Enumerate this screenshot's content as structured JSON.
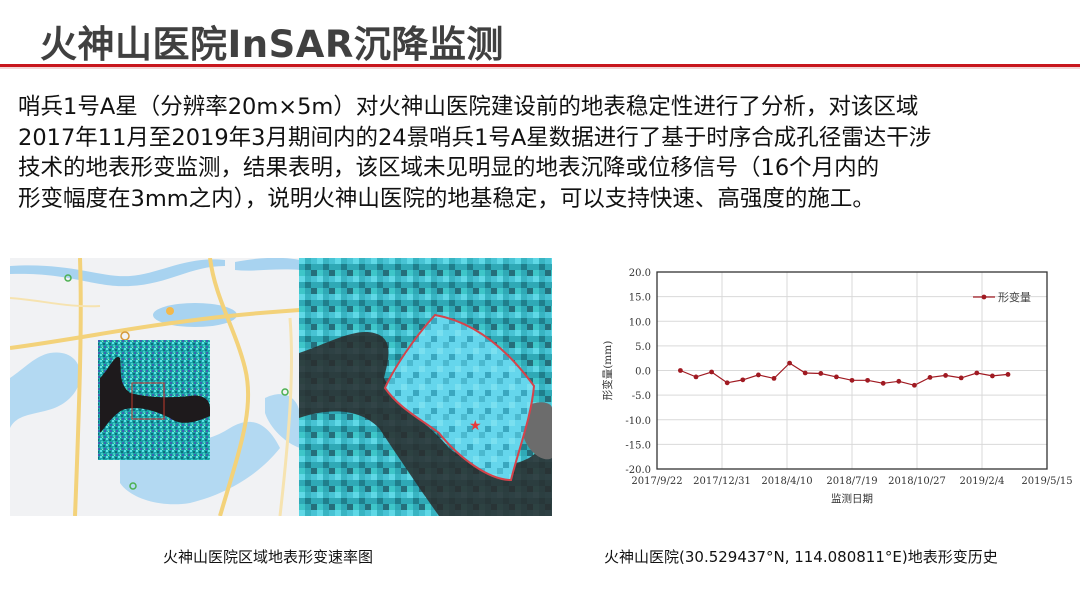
{
  "header": {
    "title": "火神山医院InSAR沉降监测"
  },
  "body": {
    "lines": [
      "哨兵1号A星（分辨率20m×5m）对火神山医院建设前的地表稳定性进行了分析，对该区域",
      "2017年11月至2019年3月期间内的24景哨兵1号A星数据进行了基于时序合成孔径雷达干涉",
      "技术的地表形变监测，结果表明，该区域未见明显的地表沉降或位移信号（16个月内的",
      "形变幅度在3mm之内），说明火神山医院的地基稳定，可以支持快速、高强度的施工。"
    ]
  },
  "figures": {
    "left_caption": "火神山医院区域地表形变速率图",
    "right_caption": "火神山医院(30.529437°N, 114.080811°E)地表形变历史"
  },
  "colors": {
    "accent_red": "#c8161d",
    "title_gray": "#404040",
    "series": "#a01a22",
    "grid": "#d9d9d9"
  },
  "chart_data": {
    "type": "line",
    "title": "",
    "xlabel": "监测日期",
    "ylabel": "形变量(mm)",
    "ylim": [
      -20.0,
      20.0
    ],
    "yticks": [
      "20.0",
      "15.0",
      "10.0",
      "5.0",
      "0.0",
      "-5.0",
      "-10.0",
      "-15.0",
      "-20.0"
    ],
    "xticks": [
      "2017/9/22",
      "2017/12/31",
      "2018/4/10",
      "2018/7/19",
      "2018/10/27",
      "2019/2/4",
      "2019/5/15"
    ],
    "grid": true,
    "legend_position": "upper right",
    "series": [
      {
        "name": "形变量",
        "x": [
          "2017/10/28",
          "2017/11/21",
          "2017/12/15",
          "2018/1/8",
          "2018/2/1",
          "2018/2/25",
          "2018/3/21",
          "2018/4/14",
          "2018/5/8",
          "2018/6/1",
          "2018/6/25",
          "2018/7/19",
          "2018/8/12",
          "2018/9/5",
          "2018/9/29",
          "2018/10/23",
          "2018/11/16",
          "2018/12/10",
          "2019/1/3",
          "2019/1/27",
          "2019/2/20",
          "2019/3/16"
        ],
        "values": [
          0.0,
          -1.3,
          -0.3,
          -2.5,
          -1.9,
          -0.9,
          -1.6,
          1.5,
          -0.5,
          -0.6,
          -1.3,
          -2.0,
          -2.0,
          -2.6,
          -2.2,
          -3.0,
          -1.4,
          -1.0,
          -1.5,
          -0.5,
          -1.1,
          -0.8
        ]
      }
    ]
  }
}
